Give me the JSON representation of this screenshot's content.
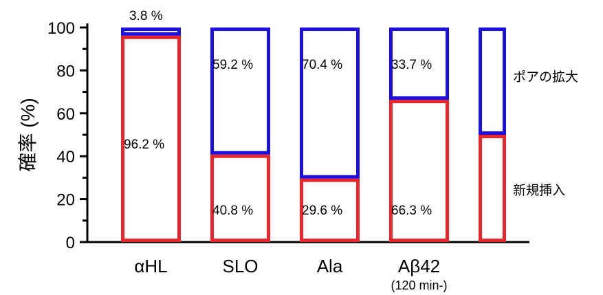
{
  "chart_data": {
    "type": "bar",
    "stacked": true,
    "categories": [
      "αHL",
      "SLO",
      "Ala",
      "Aβ42",
      ""
    ],
    "category_sublabels": [
      "",
      "",
      "",
      "(120 min-)",
      ""
    ],
    "series": [
      {
        "name": "新規挿入",
        "color": "#e8262b",
        "values": [
          96.2,
          40.8,
          29.6,
          66.3,
          50
        ],
        "labels": [
          "96.2 %",
          "40.8 %",
          "29.6 %",
          "66.3 %",
          ""
        ]
      },
      {
        "name": "ポアの拡大",
        "color": "#1c10e0",
        "values": [
          3.8,
          59.2,
          70.4,
          33.7,
          50
        ],
        "labels": [
          "3.8 %",
          "59.2 %",
          "70.4 %",
          "33.7 %",
          ""
        ]
      }
    ],
    "ylabel": "確率 (%)",
    "xlabel": "",
    "ylim": [
      0,
      100
    ],
    "yticks": [
      0,
      20,
      40,
      60,
      80,
      100
    ],
    "yticklabels": [
      "0",
      "20",
      "40",
      "60",
      "80",
      "100"
    ],
    "side_labels": [
      "ポアの拡大",
      "新規挿入"
    ],
    "grid": false,
    "legend": "right"
  }
}
